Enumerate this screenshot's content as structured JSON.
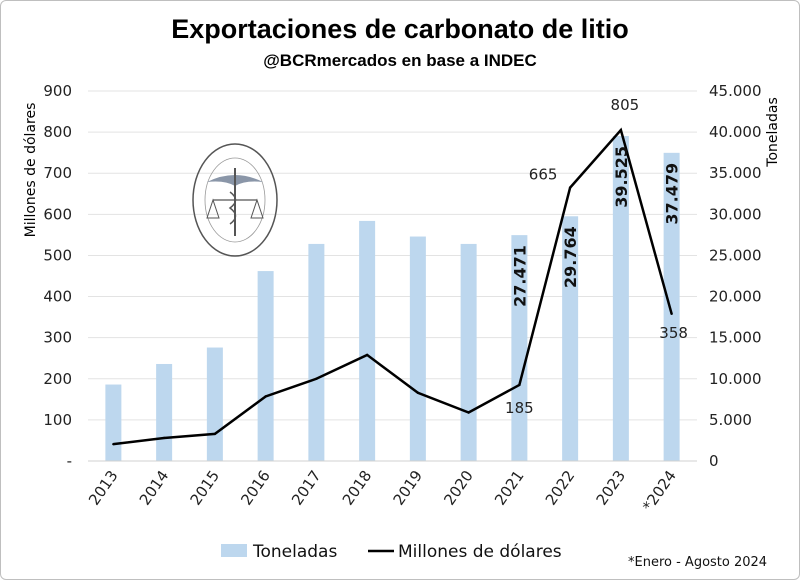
{
  "chart_data": {
    "type": "bar+line",
    "title": "Exportaciones de carbonato de litio",
    "subtitle": "@BCRmercados en base a INDEC",
    "categories": [
      "2013",
      "2014",
      "2015",
      "2016",
      "2017",
      "2018",
      "2019",
      "2020",
      "2021",
      "2022",
      "2023",
      "*2024"
    ],
    "series": [
      {
        "name": "Toneladas",
        "type": "bar",
        "axis": "right",
        "color": "#bdd7ee",
        "values": [
          9300,
          11800,
          13800,
          23100,
          26400,
          29200,
          27300,
          26400,
          27471,
          29764,
          39525,
          37479
        ],
        "labels": [
          "",
          "",
          "",
          "",
          "",
          "",
          "",
          "",
          "27.471",
          "29.764",
          "39.525",
          "37.479"
        ]
      },
      {
        "name": "Millones de dólares",
        "type": "line",
        "axis": "left",
        "color": "#000000",
        "values": [
          41,
          56,
          66,
          157,
          200,
          258,
          166,
          118,
          185,
          665,
          805,
          358
        ],
        "labels": [
          "",
          "",
          "",
          "",
          "",
          "",
          "",
          "",
          "185",
          "665",
          "805",
          "358"
        ]
      }
    ],
    "ylabel_left": "Millones de dólares",
    "ylabel_right": "Toneladas",
    "ylim_left": [
      0,
      900
    ],
    "ylim_right": [
      0,
      45000
    ],
    "yticks_left": [
      "-",
      "100",
      "200",
      "300",
      "400",
      "500",
      "600",
      "700",
      "800",
      "900"
    ],
    "yticks_right": [
      "0",
      "5.000",
      "10.000",
      "15.000",
      "20.000",
      "25.000",
      "30.000",
      "35.000",
      "40.000",
      "45.000"
    ],
    "grid": true,
    "legend_position": "bottom",
    "footnote": "*Enero - Agosto 2024",
    "watermark_logo": "BOLSA DE COMERCIO DE ROSARIO"
  }
}
